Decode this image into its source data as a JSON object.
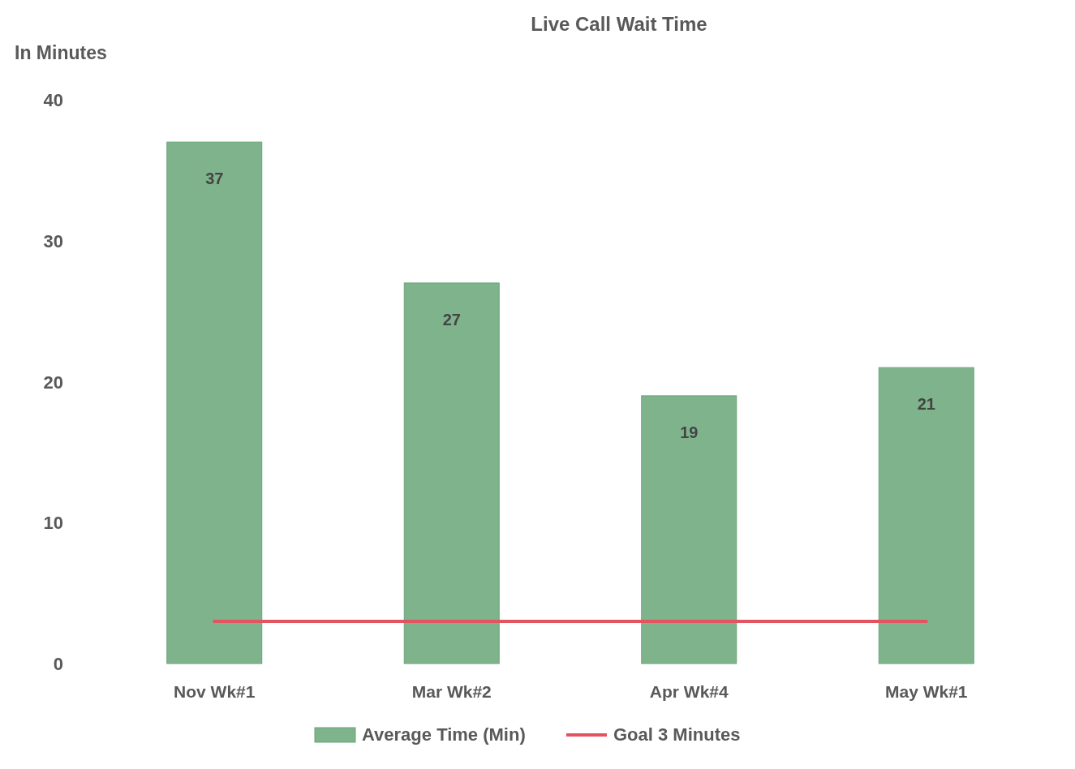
{
  "chart_data": {
    "type": "bar",
    "title": "Live Call Wait Time",
    "ylabel": "In Minutes",
    "categories": [
      "Nov Wk#1",
      "Mar Wk#2",
      "Apr Wk#4",
      "May Wk#1"
    ],
    "series": [
      {
        "name": "Average Time (Min)",
        "color": "#7fb38c",
        "values": [
          37,
          27,
          19,
          21
        ],
        "value_labels": [
          "37",
          "27",
          "19",
          "21"
        ]
      },
      {
        "name": "Goal 3 Minutes",
        "type": "line",
        "color": "#e2545f",
        "values": [
          3,
          3,
          3,
          3
        ]
      }
    ],
    "ylim": [
      0,
      40
    ],
    "yticks": [
      0,
      10,
      20,
      30,
      40
    ],
    "grid": false,
    "legend": "bottom"
  }
}
